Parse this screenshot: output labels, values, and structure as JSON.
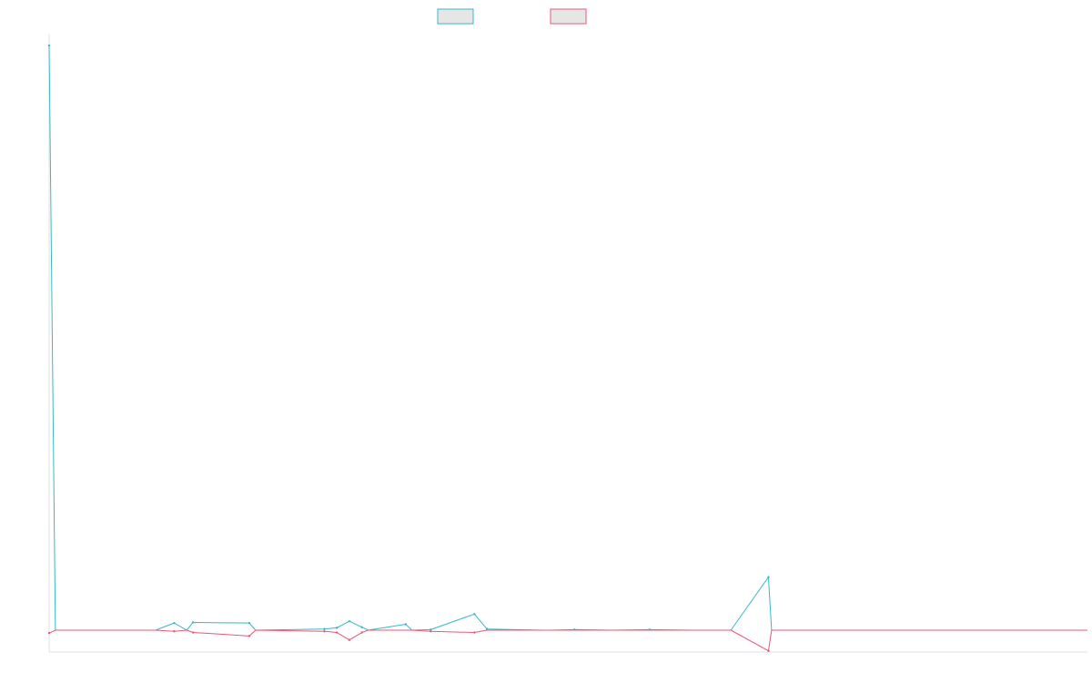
{
  "chart_data": {
    "type": "line",
    "title": "",
    "xlabel": "",
    "ylabel": "",
    "legend_position": "top-center",
    "grid": false,
    "x": [
      0,
      1,
      10,
      17,
      20,
      22,
      23,
      32,
      33,
      44,
      46,
      48,
      50,
      51,
      57,
      58,
      61,
      68,
      70,
      79,
      80,
      84,
      90,
      96,
      103,
      109,
      115,
      115.5,
      116,
      120,
      150,
      166
    ],
    "ylim": [
      -0.038,
      1.0
    ],
    "xlim": [
      0,
      166
    ],
    "series": [
      {
        "color": "#36b9c5",
        "values": [
          0.98,
          0,
          0,
          0,
          0.012,
          0,
          0.013,
          0.012,
          0,
          0.002,
          0.004,
          0.015,
          0.005,
          0,
          0.01,
          0,
          0.001,
          0.027,
          0.002,
          0,
          0,
          0.001,
          0,
          0.001,
          0,
          0,
          0.089,
          0,
          0,
          0,
          0,
          0
        ]
      },
      {
        "color": "#ef5576",
        "values": [
          -0.005,
          0,
          0,
          0,
          -0.002,
          0,
          -0.004,
          -0.01,
          0,
          -0.002,
          -0.004,
          -0.017,
          -0.004,
          0,
          0,
          0,
          -0.002,
          -0.004,
          0,
          0,
          0,
          0,
          0,
          0,
          0,
          0,
          -0.036,
          0,
          0,
          0,
          0,
          0
        ]
      }
    ]
  }
}
